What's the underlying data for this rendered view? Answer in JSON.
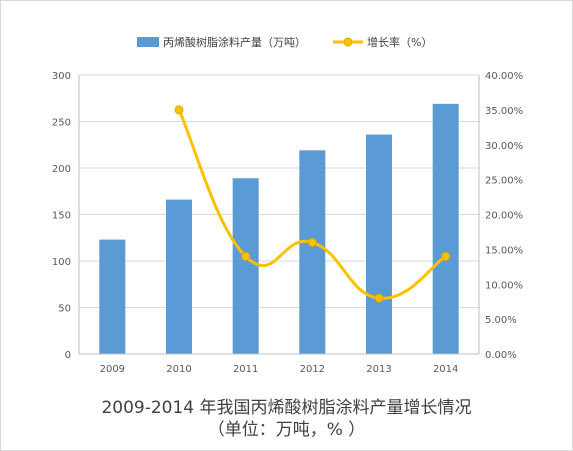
{
  "chart_data": {
    "type": "bar+line",
    "title": "2009-2014 年我国丙烯酸树脂涂料产量增长情况",
    "subtitle": "（单位：万吨，% ）",
    "categories": [
      "2009",
      "2010",
      "2011",
      "2012",
      "2013",
      "2014"
    ],
    "series": [
      {
        "name": "丙烯酸树脂涂料产量（万吨）",
        "type": "bar",
        "axis": "left",
        "color": "#5b9bd5",
        "values": [
          123,
          166,
          189,
          219,
          236,
          269
        ]
      },
      {
        "name": "增长率（%）",
        "type": "line",
        "axis": "right",
        "color": "#ffc000",
        "values": [
          null,
          35.0,
          14.0,
          16.0,
          8.0,
          14.0
        ]
      }
    ],
    "y_left": {
      "ylim": [
        0,
        300
      ],
      "ticks": [
        "0",
        "50",
        "100",
        "150",
        "200",
        "250",
        "300"
      ]
    },
    "y_right": {
      "ylim": [
        0,
        40
      ],
      "ticks": [
        "0.00%",
        "5.00%",
        "10.00%",
        "15.00%",
        "20.00%",
        "25.00%",
        "30.00%",
        "35.00%",
        "40.00%"
      ]
    },
    "grid": true,
    "legend_position": "top"
  }
}
